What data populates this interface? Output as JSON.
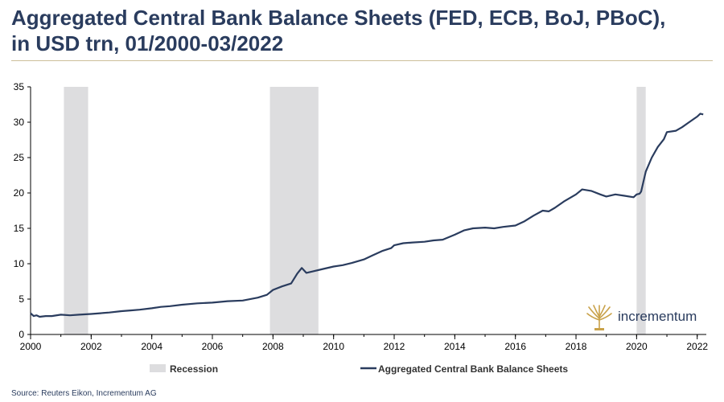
{
  "title_line1": "Aggregated Central Bank Balance Sheets (FED, ECB, BoJ, PBoC),",
  "title_line2": "in USD trn, 01/2000-03/2022",
  "source": "Source: Reuters Eikon, Incrementum AG",
  "logo_text": "incrementum",
  "colors": {
    "line": "#2a3c5e",
    "recession": "#dddddf",
    "title": "#2a3c5e",
    "rule": "#cdbf9a"
  },
  "chart_data": {
    "type": "line",
    "title": "Aggregated Central Bank Balance Sheets (FED, ECB, BoJ, PBoC), in USD trn, 01/2000-03/2022",
    "xlabel": "",
    "ylabel": "",
    "xlim": [
      2000,
      2022.3
    ],
    "ylim": [
      0,
      35
    ],
    "xticks": [
      2000,
      2002,
      2004,
      2006,
      2008,
      2010,
      2012,
      2014,
      2016,
      2018,
      2020,
      2022
    ],
    "yticks": [
      0,
      5,
      10,
      15,
      20,
      25,
      30,
      35
    ],
    "grid": false,
    "legend": {
      "position": "bottom",
      "entries": [
        {
          "label": "Recession",
          "kind": "area"
        },
        {
          "label": "Aggregated Central Bank Balance Sheets",
          "kind": "line"
        }
      ]
    },
    "recessions": [
      {
        "start": 2001.1,
        "end": 2001.9
      },
      {
        "start": 2007.9,
        "end": 2009.5
      },
      {
        "start": 2020.0,
        "end": 2020.3
      }
    ],
    "series": [
      {
        "name": "Aggregated Central Bank Balance Sheets",
        "x": [
          2000.0,
          2000.1,
          2000.2,
          2000.3,
          2000.5,
          2000.7,
          2001.0,
          2001.3,
          2001.6,
          2002.0,
          2002.3,
          2002.6,
          2003.0,
          2003.3,
          2003.6,
          2004.0,
          2004.3,
          2004.6,
          2005.0,
          2005.5,
          2006.0,
          2006.5,
          2007.0,
          2007.5,
          2007.8,
          2008.0,
          2008.3,
          2008.6,
          2008.8,
          2008.95,
          2009.1,
          2009.3,
          2009.6,
          2010.0,
          2010.3,
          2010.6,
          2011.0,
          2011.3,
          2011.6,
          2011.9,
          2012.0,
          2012.3,
          2012.6,
          2013.0,
          2013.3,
          2013.6,
          2014.0,
          2014.3,
          2014.6,
          2015.0,
          2015.3,
          2015.6,
          2016.0,
          2016.3,
          2016.6,
          2016.9,
          2017.1,
          2017.3,
          2017.6,
          2018.0,
          2018.2,
          2018.5,
          2018.8,
          2019.0,
          2019.3,
          2019.6,
          2019.9,
          2020.0,
          2020.1,
          2020.15,
          2020.3,
          2020.5,
          2020.7,
          2020.9,
          2021.0,
          2021.3,
          2021.5,
          2021.7,
          2021.9,
          2022.0,
          2022.1,
          2022.2
        ],
        "values": [
          3.0,
          2.6,
          2.7,
          2.5,
          2.6,
          2.6,
          2.8,
          2.7,
          2.8,
          2.9,
          3.0,
          3.1,
          3.3,
          3.4,
          3.5,
          3.7,
          3.9,
          4.0,
          4.2,
          4.4,
          4.5,
          4.7,
          4.8,
          5.2,
          5.6,
          6.3,
          6.8,
          7.2,
          8.6,
          9.4,
          8.7,
          8.9,
          9.2,
          9.6,
          9.8,
          10.1,
          10.6,
          11.2,
          11.8,
          12.2,
          12.6,
          12.9,
          13.0,
          13.1,
          13.3,
          13.4,
          14.1,
          14.7,
          15.0,
          15.1,
          15.0,
          15.2,
          15.4,
          16.0,
          16.8,
          17.5,
          17.4,
          17.9,
          18.8,
          19.8,
          20.5,
          20.3,
          19.8,
          19.5,
          19.8,
          19.6,
          19.4,
          19.8,
          19.9,
          20.2,
          23.0,
          25.0,
          26.5,
          27.6,
          28.6,
          28.8,
          29.3,
          29.9,
          30.5,
          30.8,
          31.2,
          31.1
        ]
      }
    ]
  }
}
